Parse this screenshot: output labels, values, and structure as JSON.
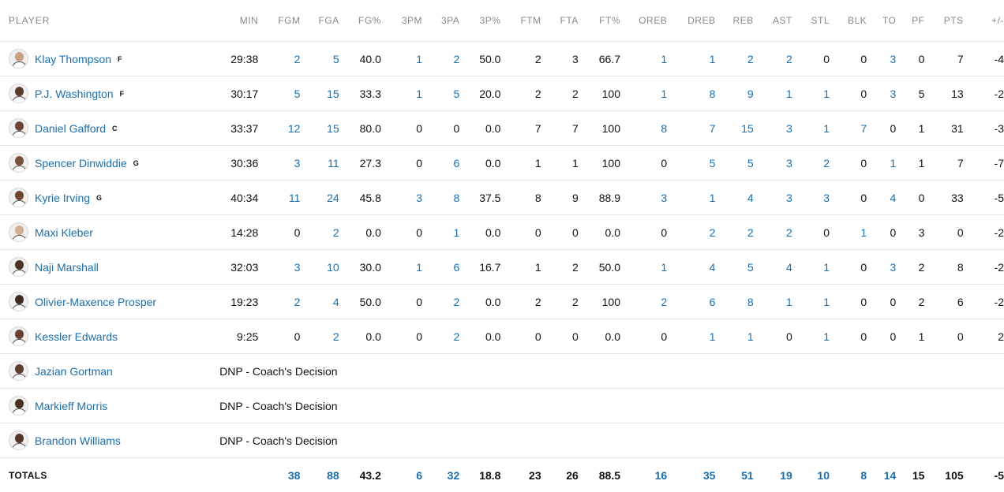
{
  "columns": {
    "player": "PLAYER",
    "min": "MIN",
    "fgm": "FGM",
    "fga": "FGA",
    "fgp": "FG%",
    "tpm": "3PM",
    "tpa": "3PA",
    "tpp": "3P%",
    "ftm": "FTM",
    "fta": "FTA",
    "ftp": "FT%",
    "oreb": "OREB",
    "dreb": "DREB",
    "reb": "REB",
    "ast": "AST",
    "stl": "STL",
    "blk": "BLK",
    "to": "TO",
    "pf": "PF",
    "pts": "PTS",
    "pm": "+/-"
  },
  "players": [
    {
      "name": "Klay Thompson",
      "pos": "F",
      "skin": "#c9a285",
      "min": "29:38",
      "fgm": "2",
      "fga": "5",
      "fgp": "40.0",
      "tpm": "1",
      "tpa": "2",
      "tpp": "50.0",
      "ftm": "2",
      "fta": "3",
      "ftp": "66.7",
      "oreb": "1",
      "dreb": "1",
      "reb": "2",
      "ast": "2",
      "stl": "0",
      "blk": "0",
      "to": "3",
      "pf": "0",
      "pts": "7",
      "pm": "-4"
    },
    {
      "name": "P.J. Washington",
      "pos": "F",
      "skin": "#5a3a28",
      "min": "30:17",
      "fgm": "5",
      "fga": "15",
      "fgp": "33.3",
      "tpm": "1",
      "tpa": "5",
      "tpp": "20.0",
      "ftm": "2",
      "fta": "2",
      "ftp": "100",
      "oreb": "1",
      "dreb": "8",
      "reb": "9",
      "ast": "1",
      "stl": "1",
      "blk": "0",
      "to": "3",
      "pf": "5",
      "pts": "13",
      "pm": "-2"
    },
    {
      "name": "Daniel Gafford",
      "pos": "C",
      "skin": "#6b4632",
      "min": "33:37",
      "fgm": "12",
      "fga": "15",
      "fgp": "80.0",
      "tpm": "0",
      "tpa": "0",
      "tpp": "0.0",
      "ftm": "7",
      "fta": "7",
      "ftp": "100",
      "oreb": "8",
      "dreb": "7",
      "reb": "15",
      "ast": "3",
      "stl": "1",
      "blk": "7",
      "to": "0",
      "pf": "1",
      "pts": "31",
      "pm": "-3"
    },
    {
      "name": "Spencer Dinwiddie",
      "pos": "G",
      "skin": "#7a5038",
      "min": "30:36",
      "fgm": "3",
      "fga": "11",
      "fgp": "27.3",
      "tpm": "0",
      "tpa": "6",
      "tpp": "0.0",
      "ftm": "1",
      "fta": "1",
      "ftp": "100",
      "oreb": "0",
      "dreb": "5",
      "reb": "5",
      "ast": "3",
      "stl": "2",
      "blk": "0",
      "to": "1",
      "pf": "1",
      "pts": "7",
      "pm": "-7"
    },
    {
      "name": "Kyrie Irving",
      "pos": "G",
      "skin": "#6e4530",
      "min": "40:34",
      "fgm": "11",
      "fga": "24",
      "fgp": "45.8",
      "tpm": "3",
      "tpa": "8",
      "tpp": "37.5",
      "ftm": "8",
      "fta": "9",
      "ftp": "88.9",
      "oreb": "3",
      "dreb": "1",
      "reb": "4",
      "ast": "3",
      "stl": "3",
      "blk": "0",
      "to": "4",
      "pf": "0",
      "pts": "33",
      "pm": "-5"
    },
    {
      "name": "Maxi Kleber",
      "pos": "",
      "skin": "#d1ae92",
      "min": "14:28",
      "fgm": "0",
      "fga": "2",
      "fgp": "0.0",
      "tpm": "0",
      "tpa": "1",
      "tpp": "0.0",
      "ftm": "0",
      "fta": "0",
      "ftp": "0.0",
      "oreb": "0",
      "dreb": "2",
      "reb": "2",
      "ast": "2",
      "stl": "0",
      "blk": "1",
      "to": "0",
      "pf": "3",
      "pts": "0",
      "pm": "-2"
    },
    {
      "name": "Naji Marshall",
      "pos": "",
      "skin": "#4e3224",
      "min": "32:03",
      "fgm": "3",
      "fga": "10",
      "fgp": "30.0",
      "tpm": "1",
      "tpa": "6",
      "tpp": "16.7",
      "ftm": "1",
      "fta": "2",
      "ftp": "50.0",
      "oreb": "1",
      "dreb": "4",
      "reb": "5",
      "ast": "4",
      "stl": "1",
      "blk": "0",
      "to": "3",
      "pf": "2",
      "pts": "8",
      "pm": "-2"
    },
    {
      "name": "Olivier-Maxence Prosper",
      "pos": "",
      "skin": "#3f2a20",
      "min": "19:23",
      "fgm": "2",
      "fga": "4",
      "fgp": "50.0",
      "tpm": "0",
      "tpa": "2",
      "tpp": "0.0",
      "ftm": "2",
      "fta": "2",
      "ftp": "100",
      "oreb": "2",
      "dreb": "6",
      "reb": "8",
      "ast": "1",
      "stl": "1",
      "blk": "0",
      "to": "0",
      "pf": "2",
      "pts": "6",
      "pm": "-2"
    },
    {
      "name": "Kessler Edwards",
      "pos": "",
      "skin": "#6a4330",
      "min": "9:25",
      "fgm": "0",
      "fga": "2",
      "fgp": "0.0",
      "tpm": "0",
      "tpa": "2",
      "tpp": "0.0",
      "ftm": "0",
      "fta": "0",
      "ftp": "0.0",
      "oreb": "0",
      "dreb": "1",
      "reb": "1",
      "ast": "0",
      "stl": "1",
      "blk": "0",
      "to": "0",
      "pf": "1",
      "pts": "0",
      "pm": "2"
    },
    {
      "name": "Jazian Gortman",
      "pos": "",
      "skin": "#5e3b2a",
      "dnp": "DNP - Coach's Decision"
    },
    {
      "name": "Markieff Morris",
      "pos": "",
      "skin": "#4a2f22",
      "dnp": "DNP - Coach's Decision"
    },
    {
      "name": "Brandon Williams",
      "pos": "",
      "skin": "#553626",
      "dnp": "DNP - Coach's Decision"
    }
  ],
  "totals": {
    "label": "TOTALS",
    "fgm": "38",
    "fga": "88",
    "fgp": "43.2",
    "tpm": "6",
    "tpa": "32",
    "tpp": "18.8",
    "ftm": "23",
    "fta": "26",
    "ftp": "88.5",
    "oreb": "16",
    "dreb": "35",
    "reb": "51",
    "ast": "19",
    "stl": "10",
    "blk": "8",
    "to": "14",
    "pf": "15",
    "pts": "105",
    "pm": "-5"
  },
  "link_color": "#1a6fb3"
}
